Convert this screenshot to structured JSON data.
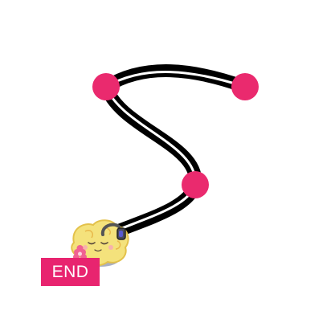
{
  "game": {
    "end_label": "END",
    "colors": {
      "background": "#ffffff",
      "track_outline": "#000000",
      "track_core": "#ffffff",
      "dot": "#ea2a6e",
      "end_badge": "#e8246f",
      "brain": "#f4e27c",
      "brain_outline": "#e3c14a",
      "brain_shadow": "#9aa0b8",
      "flower": "#f06292"
    },
    "icons": {
      "dots": [
        "dot-icon",
        "dot-icon",
        "dot-icon"
      ],
      "character": "brain-character-icon",
      "headphones": "headphones-icon",
      "flower": "flower-icon"
    }
  }
}
